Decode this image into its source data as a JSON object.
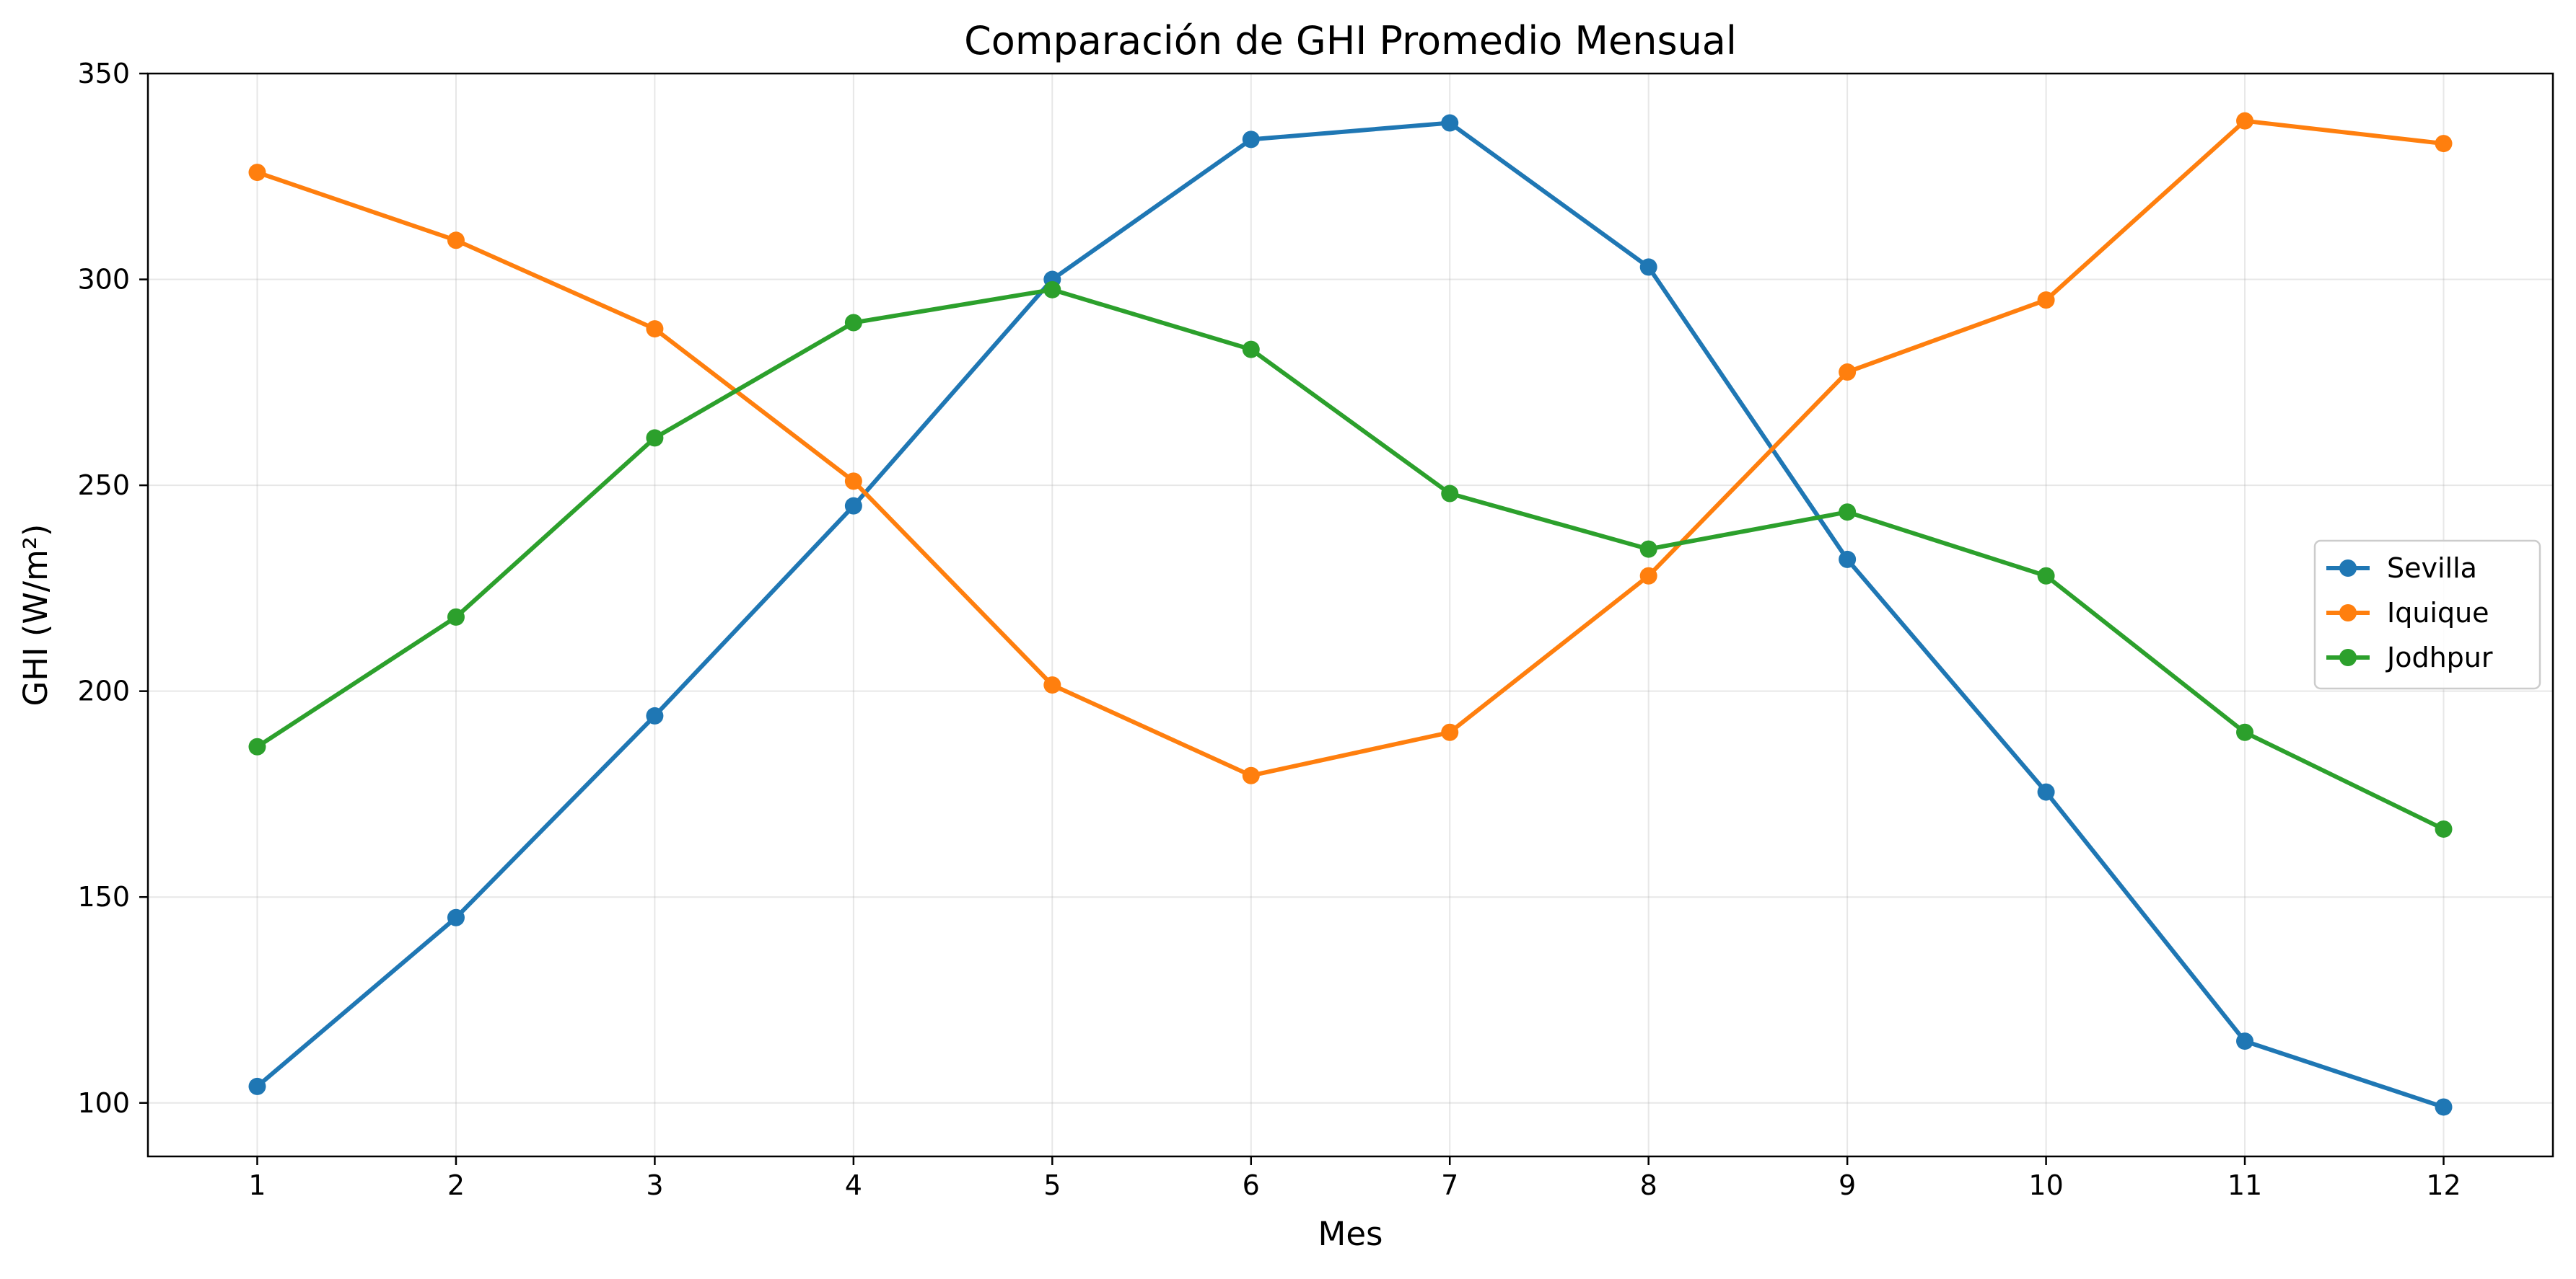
{
  "chart_data": {
    "type": "line",
    "title": "Comparación de GHI Promedio Mensual",
    "xlabel": "Mes",
    "ylabel": "GHI (W/m²)",
    "x": [
      1,
      2,
      3,
      4,
      5,
      6,
      7,
      8,
      9,
      10,
      11,
      12
    ],
    "xlim": [
      0.45,
      12.55
    ],
    "ylim": [
      87,
      350
    ],
    "yticks": [
      100,
      150,
      200,
      250,
      300,
      350
    ],
    "grid": true,
    "legend_position": "center-right",
    "markers": "circle",
    "series": [
      {
        "name": "Sevilla",
        "color": "#1f77b4",
        "values": [
          104,
          145,
          194,
          245,
          300,
          334,
          338,
          303,
          232,
          175.5,
          115,
          99
        ]
      },
      {
        "name": "Iquique",
        "color": "#ff7f0e",
        "values": [
          326,
          309.5,
          288,
          251,
          201.5,
          179.5,
          190,
          228,
          277.5,
          295,
          338.5,
          333
        ]
      },
      {
        "name": "Jodhpur",
        "color": "#2ca02c",
        "values": [
          186.5,
          218,
          261.5,
          289.5,
          297.5,
          283,
          248,
          234.5,
          243.5,
          228,
          190,
          166.5
        ]
      }
    ]
  }
}
